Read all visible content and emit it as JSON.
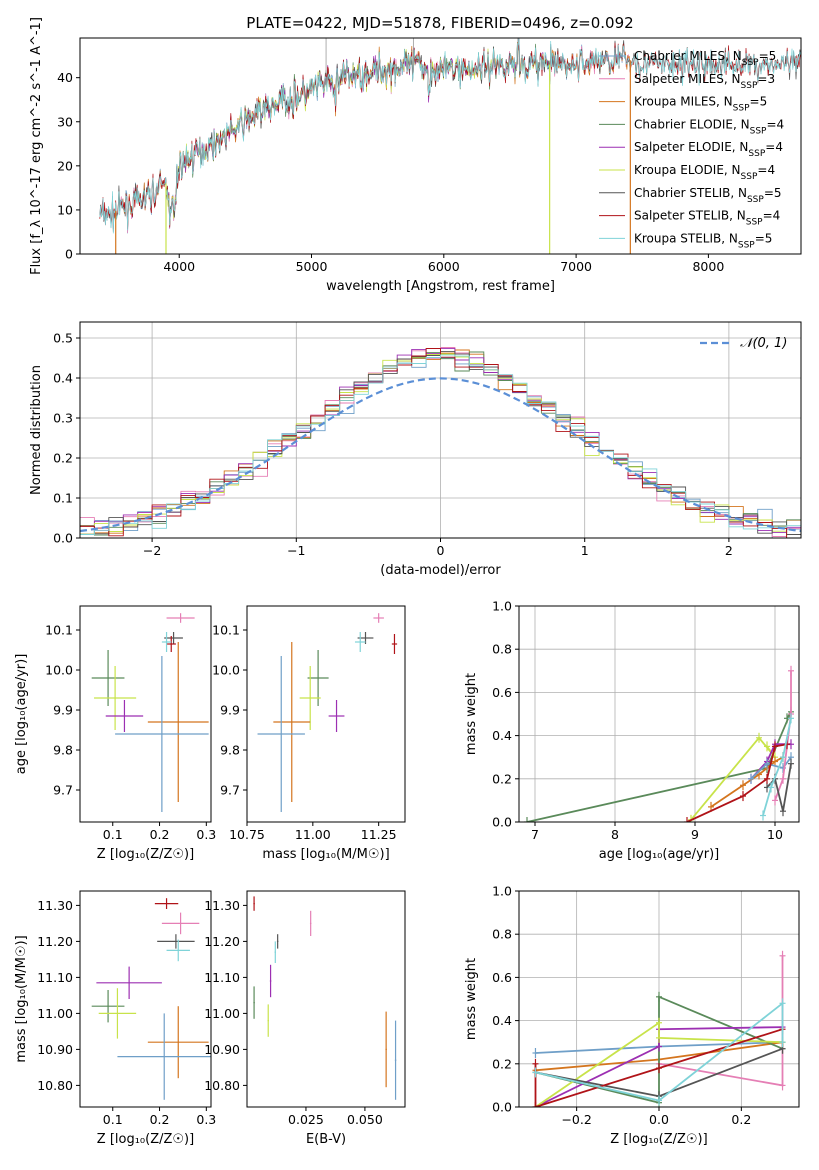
{
  "figure_title": "PLATE=0422, MJD=51878, FIBERID=0496, z=0.092",
  "colors": {
    "Chabrier MILES": "#6f9fc8",
    "Salpeter MILES": "#e57fb5",
    "Kroupa MILES": "#d4751e",
    "Chabrier ELODIE": "#5a8a5a",
    "Salpeter ELODIE": "#9c2fb2",
    "Kroupa ELODIE": "#c8e34a",
    "Chabrier STELIB": "#555555",
    "Salpeter STELIB": "#b01318",
    "Kroupa STELIB": "#7fd3d8",
    "normal": "#5b8fd6"
  },
  "chart_data": [
    {
      "id": "spectrum",
      "type": "line",
      "title": "PLATE=0422, MJD=51878, FIBERID=0496, z=0.092",
      "xlabel": "wavelength [Angstrom, rest frame]",
      "ylabel": "Flux [f_λ 10^-17 erg cm^-2 s^-1 A^-1]",
      "xlim": [
        3250,
        8700
      ],
      "ylim": [
        0,
        49
      ],
      "xticks": [
        4000,
        5000,
        6000,
        7000,
        8000
      ],
      "yticks": [
        0,
        10,
        20,
        30,
        40
      ],
      "grid": false,
      "legend": [
        "Chabrier MILES, N_SSP=5",
        "Salpeter MILES, N_SSP=3",
        "Kroupa MILES, N_SSP=5",
        "Chabrier ELODIE, N_SSP=4",
        "Salpeter ELODIE, N_SSP=4",
        "Kroupa ELODIE, N_SSP=4",
        "Chabrier STELIB, N_SSP=5",
        "Salpeter STELIB, N_SSP=4",
        "Kroupa STELIB, N_SSP=5"
      ],
      "legend_position": "right",
      "continuum": {
        "x": [
          3470,
          3600,
          3700,
          3800,
          3900,
          3950,
          4000,
          4200,
          4400,
          4600,
          4800,
          5000,
          5200,
          5400,
          5600,
          5800,
          6000,
          6200,
          6400,
          6600,
          6800,
          7000,
          7200,
          7400,
          7600,
          7800,
          8000,
          8200,
          8400
        ],
        "y": [
          9,
          11,
          12,
          14,
          16,
          12,
          20,
          24,
          28,
          32,
          35,
          37,
          40,
          41,
          42,
          43,
          42,
          42,
          43,
          43,
          43,
          43,
          44,
          44,
          43,
          43,
          43,
          43,
          43
        ]
      },
      "model_ranges": {
        "Chabrier MILES": [
          3540,
          7410
        ],
        "Salpeter MILES": [
          3540,
          7410
        ],
        "Kroupa MILES": [
          3520,
          7410
        ],
        "Chabrier ELODIE": [
          3900,
          6800
        ],
        "Salpeter ELODIE": [
          3900,
          6800
        ],
        "Kroupa ELODIE": [
          3900,
          6800
        ],
        "Chabrier STELIB": [
          3400,
          8700
        ],
        "Salpeter STELIB": [
          3400,
          8700
        ],
        "Kroupa STELIB": [
          3400,
          8700
        ]
      }
    },
    {
      "id": "residuals",
      "type": "step",
      "xlabel": "(data-model)/error",
      "ylabel": "Normed distribution",
      "xlim": [
        -2.5,
        2.5
      ],
      "ylim": [
        0,
        0.54
      ],
      "xticks": [
        -2,
        -1,
        0,
        1,
        2
      ],
      "yticks": [
        0.0,
        0.1,
        0.2,
        0.3,
        0.4,
        0.5
      ],
      "grid": true,
      "bin_width": 0.1,
      "legend": [
        "𝒩(0, 1)"
      ],
      "legend_position": "top-right"
    },
    {
      "id": "age_vs_Z",
      "type": "scatter",
      "xlabel": "Z [log₁₀(Z/Z☉)]",
      "ylabel": "age  [log₁₀(age/yr)]",
      "xlim": [
        0.03,
        0.31
      ],
      "ylim": [
        9.62,
        10.16
      ],
      "xticks": [
        0.1,
        0.2,
        0.3
      ],
      "yticks": [
        9.7,
        9.8,
        9.9,
        10.0,
        10.1
      ],
      "grid": false,
      "points": [
        {
          "model": "Salpeter MILES",
          "x": 0.245,
          "y": 10.13,
          "xerr": 0.03,
          "yerr": 0.012
        },
        {
          "model": "Chabrier STELIB",
          "x": 0.23,
          "y": 10.08,
          "xerr": 0.02,
          "yerr": 0.015
        },
        {
          "model": "Salpeter STELIB",
          "x": 0.225,
          "y": 10.065,
          "xerr": 0.01,
          "yerr": 0.02
        },
        {
          "model": "Kroupa STELIB",
          "x": 0.215,
          "y": 10.07,
          "xerr": 0.01,
          "yerr": 0.025
        },
        {
          "model": "Chabrier ELODIE",
          "x": 0.09,
          "y": 9.98,
          "xerr": 0.035,
          "yerr": 0.07
        },
        {
          "model": "Kroupa ELODIE",
          "x": 0.105,
          "y": 9.93,
          "xerr": 0.045,
          "yerr": 0.08
        },
        {
          "model": "Salpeter ELODIE",
          "x": 0.125,
          "y": 9.885,
          "xerr": 0.04,
          "yerr": 0.04
        },
        {
          "model": "Kroupa MILES",
          "x": 0.24,
          "y": 9.87,
          "xerr": 0.065,
          "yerr": 0.2
        },
        {
          "model": "Chabrier MILES",
          "x": 0.205,
          "y": 9.84,
          "xerr": 0.1,
          "yerr": 0.195
        }
      ]
    },
    {
      "id": "age_vs_mass",
      "type": "scatter",
      "xlabel": "mass [log₁₀(M/M☉)]",
      "xlim": [
        10.75,
        11.35
      ],
      "ylim": [
        9.62,
        10.16
      ],
      "xticks": [
        10.75,
        11.0,
        11.25
      ],
      "xticklabels": [
        "10.75",
        "11.00",
        "11.25"
      ],
      "yticks": [
        9.7,
        9.8,
        9.9,
        10.0,
        10.1
      ],
      "grid": false,
      "points": [
        {
          "model": "Salpeter MILES",
          "x": 11.25,
          "y": 10.13,
          "xerr": 0.02,
          "yerr": 0.012
        },
        {
          "model": "Chabrier STELIB",
          "x": 11.2,
          "y": 10.08,
          "xerr": 0.03,
          "yerr": 0.015
        },
        {
          "model": "Kroupa STELIB",
          "x": 11.18,
          "y": 10.07,
          "xerr": 0.02,
          "yerr": 0.025
        },
        {
          "model": "Salpeter STELIB",
          "x": 11.31,
          "y": 10.065,
          "xerr": 0.01,
          "yerr": 0.025
        },
        {
          "model": "Chabrier ELODIE",
          "x": 11.02,
          "y": 9.98,
          "xerr": 0.04,
          "yerr": 0.07
        },
        {
          "model": "Kroupa ELODIE",
          "x": 10.99,
          "y": 9.93,
          "xerr": 0.04,
          "yerr": 0.08
        },
        {
          "model": "Salpeter ELODIE",
          "x": 11.09,
          "y": 9.885,
          "xerr": 0.03,
          "yerr": 0.04
        },
        {
          "model": "Kroupa MILES",
          "x": 10.92,
          "y": 9.87,
          "xerr": 0.07,
          "yerr": 0.2
        },
        {
          "model": "Chabrier MILES",
          "x": 10.88,
          "y": 9.84,
          "xerr": 0.09,
          "yerr": 0.195
        }
      ]
    },
    {
      "id": "weight_vs_age",
      "type": "line",
      "xlabel": "age  [log₁₀(age/yr)]",
      "ylabel": "mass weight",
      "xlim": [
        6.8,
        10.3
      ],
      "ylim": [
        0,
        1.0
      ],
      "xticks": [
        7,
        8,
        9,
        10
      ],
      "yticks": [
        0.0,
        0.2,
        0.4,
        0.6,
        0.8,
        1.0
      ],
      "grid": true,
      "series": [
        {
          "model": "Chabrier ELODIE",
          "x": [
            6.9,
            9.9,
            10.2,
            10.15
          ],
          "y": [
            0.0,
            0.25,
            0.51,
            0.48
          ]
        },
        {
          "model": "Kroupa ELODIE",
          "x": [
            8.95,
            9.8,
            10.0,
            9.9
          ],
          "y": [
            0.01,
            0.39,
            0.3,
            0.35
          ]
        },
        {
          "model": "Salpeter ELODIE",
          "x": [
            9.7,
            9.9,
            10.0,
            10.2
          ],
          "y": [
            0.2,
            0.28,
            0.36,
            0.36
          ]
        },
        {
          "model": "Kroupa MILES",
          "x": [
            9.2,
            9.6,
            9.8,
            10.0,
            10.1
          ],
          "y": [
            0.07,
            0.17,
            0.22,
            0.28,
            0.3
          ]
        },
        {
          "model": "Chabrier MILES",
          "x": [
            9.7,
            9.9,
            10.1,
            10.2
          ],
          "y": [
            0.2,
            0.27,
            0.25,
            0.3
          ]
        },
        {
          "model": "Salpeter MILES",
          "x": [
            10.0,
            10.1,
            10.2,
            10.2
          ],
          "y": [
            0.1,
            0.2,
            0.5,
            0.7
          ]
        },
        {
          "model": "Chabrier STELIB",
          "x": [
            9.9,
            10.0,
            10.1,
            10.2
          ],
          "y": [
            0.16,
            0.2,
            0.05,
            0.27
          ]
        },
        {
          "model": "Salpeter STELIB",
          "x": [
            8.9,
            9.6,
            9.9,
            10.0,
            10.15
          ],
          "y": [
            0.0,
            0.12,
            0.2,
            0.35,
            0.36
          ]
        },
        {
          "model": "Kroupa STELIB",
          "x": [
            9.85,
            9.95,
            10.1,
            10.2
          ],
          "y": [
            0.03,
            0.16,
            0.3,
            0.48
          ]
        }
      ]
    },
    {
      "id": "mass_vs_Z",
      "type": "scatter",
      "xlabel": "Z [log₁₀(Z/Z☉)]",
      "ylabel": "mass [log₁₀(M/M☉)]",
      "xlim": [
        0.03,
        0.31
      ],
      "ylim": [
        10.74,
        11.34
      ],
      "xticks": [
        0.1,
        0.2,
        0.3
      ],
      "yticks": [
        10.8,
        10.9,
        11.0,
        11.1,
        11.2,
        11.3
      ],
      "grid": false,
      "points": [
        {
          "model": "Salpeter STELIB",
          "x": 0.215,
          "y": 11.305,
          "xerr": 0.025,
          "yerr": 0.015
        },
        {
          "model": "Salpeter MILES",
          "x": 0.245,
          "y": 11.25,
          "xerr": 0.04,
          "yerr": 0.03
        },
        {
          "model": "Chabrier STELIB",
          "x": 0.235,
          "y": 11.2,
          "xerr": 0.04,
          "yerr": 0.02
        },
        {
          "model": "Kroupa STELIB",
          "x": 0.24,
          "y": 11.175,
          "xerr": 0.025,
          "yerr": 0.03
        },
        {
          "model": "Salpeter ELODIE",
          "x": 0.135,
          "y": 11.085,
          "xerr": 0.07,
          "yerr": 0.045
        },
        {
          "model": "Chabrier ELODIE",
          "x": 0.09,
          "y": 11.02,
          "xerr": 0.035,
          "yerr": 0.045
        },
        {
          "model": "Kroupa ELODIE",
          "x": 0.11,
          "y": 11.0,
          "xerr": 0.04,
          "yerr": 0.07
        },
        {
          "model": "Kroupa MILES",
          "x": 0.24,
          "y": 10.92,
          "xerr": 0.065,
          "yerr": 0.1
        },
        {
          "model": "Chabrier MILES",
          "x": 0.21,
          "y": 10.88,
          "xerr": 0.1,
          "yerr": 0.12
        }
      ]
    },
    {
      "id": "mass_vs_ebv",
      "type": "scatter",
      "xlabel": "E(B-V)",
      "xlim": [
        0.0,
        0.067
      ],
      "ylim": [
        10.74,
        11.34
      ],
      "xticks": [
        0.025,
        0.05
      ],
      "xticklabels": [
        "0.025",
        "0.050"
      ],
      "yticks": [
        10.8,
        10.9,
        11.0,
        11.1,
        11.2,
        11.3
      ],
      "grid": false,
      "points": [
        {
          "model": "Salpeter STELIB",
          "x": 0.003,
          "y": 11.305,
          "xerr": 0.0003,
          "yerr": 0.02
        },
        {
          "model": "Salpeter MILES",
          "x": 0.027,
          "y": 11.25,
          "xerr": 0.0003,
          "yerr": 0.035
        },
        {
          "model": "Chabrier STELIB",
          "x": 0.013,
          "y": 11.2,
          "xerr": 0.0003,
          "yerr": 0.02
        },
        {
          "model": "Kroupa STELIB",
          "x": 0.012,
          "y": 11.17,
          "xerr": 0.0003,
          "yerr": 0.03
        },
        {
          "model": "Salpeter ELODIE",
          "x": 0.01,
          "y": 11.09,
          "xerr": 0.0003,
          "yerr": 0.045
        },
        {
          "model": "Chabrier ELODIE",
          "x": 0.003,
          "y": 11.03,
          "xerr": 0.0003,
          "yerr": 0.045
        },
        {
          "model": "Kroupa ELODIE",
          "x": 0.009,
          "y": 10.98,
          "xerr": 0.0003,
          "yerr": 0.045
        },
        {
          "model": "Kroupa MILES",
          "x": 0.059,
          "y": 10.9,
          "xerr": 0.0003,
          "yerr": 0.105
        },
        {
          "model": "Chabrier MILES",
          "x": 0.063,
          "y": 10.87,
          "xerr": 0.0003,
          "yerr": 0.11
        }
      ]
    },
    {
      "id": "weight_vs_Z",
      "type": "line",
      "xlabel": "Z [log₁₀(Z/Z☉)]",
      "ylabel": "mass weight",
      "xlim": [
        -0.34,
        0.34
      ],
      "ylim": [
        0,
        1.0
      ],
      "xticks": [
        -0.2,
        0.0,
        0.2
      ],
      "xticklabels": [
        "−0.2",
        "0.0",
        "0.2"
      ],
      "yticks": [
        0.0,
        0.2,
        0.4,
        0.6,
        0.8,
        1.0
      ],
      "grid": true,
      "series": [
        {
          "model": "Chabrier MILES",
          "x": [
            -0.3,
            0.0,
            0.3
          ],
          "y": [
            0.25,
            0.28,
            0.3
          ]
        },
        {
          "model": "Salpeter MILES",
          "x": [
            0.0,
            0.3,
            0.3
          ],
          "y": [
            0.2,
            0.1,
            0.7
          ]
        },
        {
          "model": "Kroupa MILES",
          "x": [
            -0.3,
            0.0,
            0.3
          ],
          "y": [
            0.17,
            0.22,
            0.3
          ]
        },
        {
          "model": "Chabrier ELODIE",
          "x": [
            -0.3,
            0.0,
            0.0,
            0.3
          ],
          "y": [
            0.16,
            0.02,
            0.51,
            0.27
          ]
        },
        {
          "model": "Salpeter ELODIE",
          "x": [
            -0.3,
            0.0,
            0.0,
            0.3
          ],
          "y": [
            0.0,
            0.28,
            0.36,
            0.37
          ]
        },
        {
          "model": "Kroupa ELODIE",
          "x": [
            -0.3,
            0.0,
            0.0,
            0.3
          ],
          "y": [
            0.0,
            0.39,
            0.32,
            0.3
          ]
        },
        {
          "model": "Chabrier STELIB",
          "x": [
            -0.3,
            0.0,
            0.3
          ],
          "y": [
            0.16,
            0.05,
            0.27
          ]
        },
        {
          "model": "Salpeter STELIB",
          "x": [
            -0.3,
            -0.3,
            0.0,
            0.3
          ],
          "y": [
            0.2,
            0.0,
            0.18,
            0.36
          ]
        },
        {
          "model": "Kroupa STELIB",
          "x": [
            -0.3,
            0.0,
            0.3,
            0.3
          ],
          "y": [
            0.16,
            0.03,
            0.48,
            0.3
          ]
        }
      ]
    }
  ]
}
